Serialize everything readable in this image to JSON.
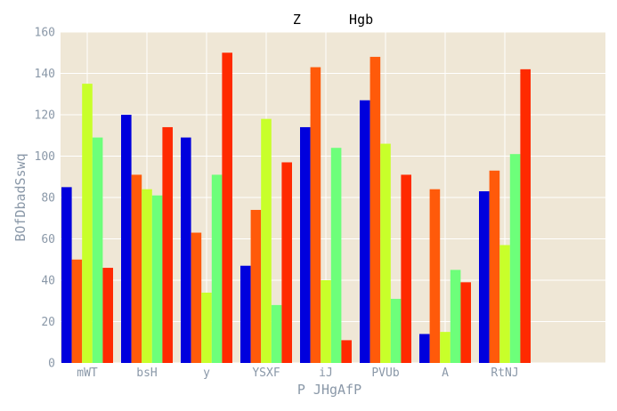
{
  "chart_data": {
    "type": "bar",
    "title": "Z      Hgb",
    "xlabel": "P JHgAfP",
    "ylabel": "BOfDbadSswq",
    "ylim": [
      0,
      160
    ],
    "yticks": [
      0,
      20,
      40,
      60,
      80,
      100,
      120,
      140,
      160
    ],
    "grid": true,
    "legend": "none",
    "categories": [
      "mWT",
      "bsH",
      "y",
      "YSXF",
      "iJ",
      "PVUb",
      "A",
      "RtNJ"
    ],
    "series": [
      {
        "color": "#0000dd",
        "values": [
          85,
          120,
          109,
          47,
          114,
          127,
          14,
          83
        ]
      },
      {
        "color": "#ff5a0a",
        "values": [
          50,
          91,
          63,
          74,
          143,
          148,
          84,
          93
        ]
      },
      {
        "color": "#c8ff2a",
        "values": [
          135,
          84,
          34,
          118,
          40,
          106,
          15,
          57
        ]
      },
      {
        "color": "#6dff7a",
        "values": [
          109,
          81,
          91,
          28,
          104,
          31,
          45,
          101
        ]
      },
      {
        "color": "#ff2a00",
        "values": [
          46,
          114,
          150,
          97,
          11,
          91,
          39,
          142
        ]
      }
    ],
    "colors": {
      "plot_background": "#efe7d6",
      "grid": "#ffffff",
      "text": "#8a98a8"
    }
  }
}
